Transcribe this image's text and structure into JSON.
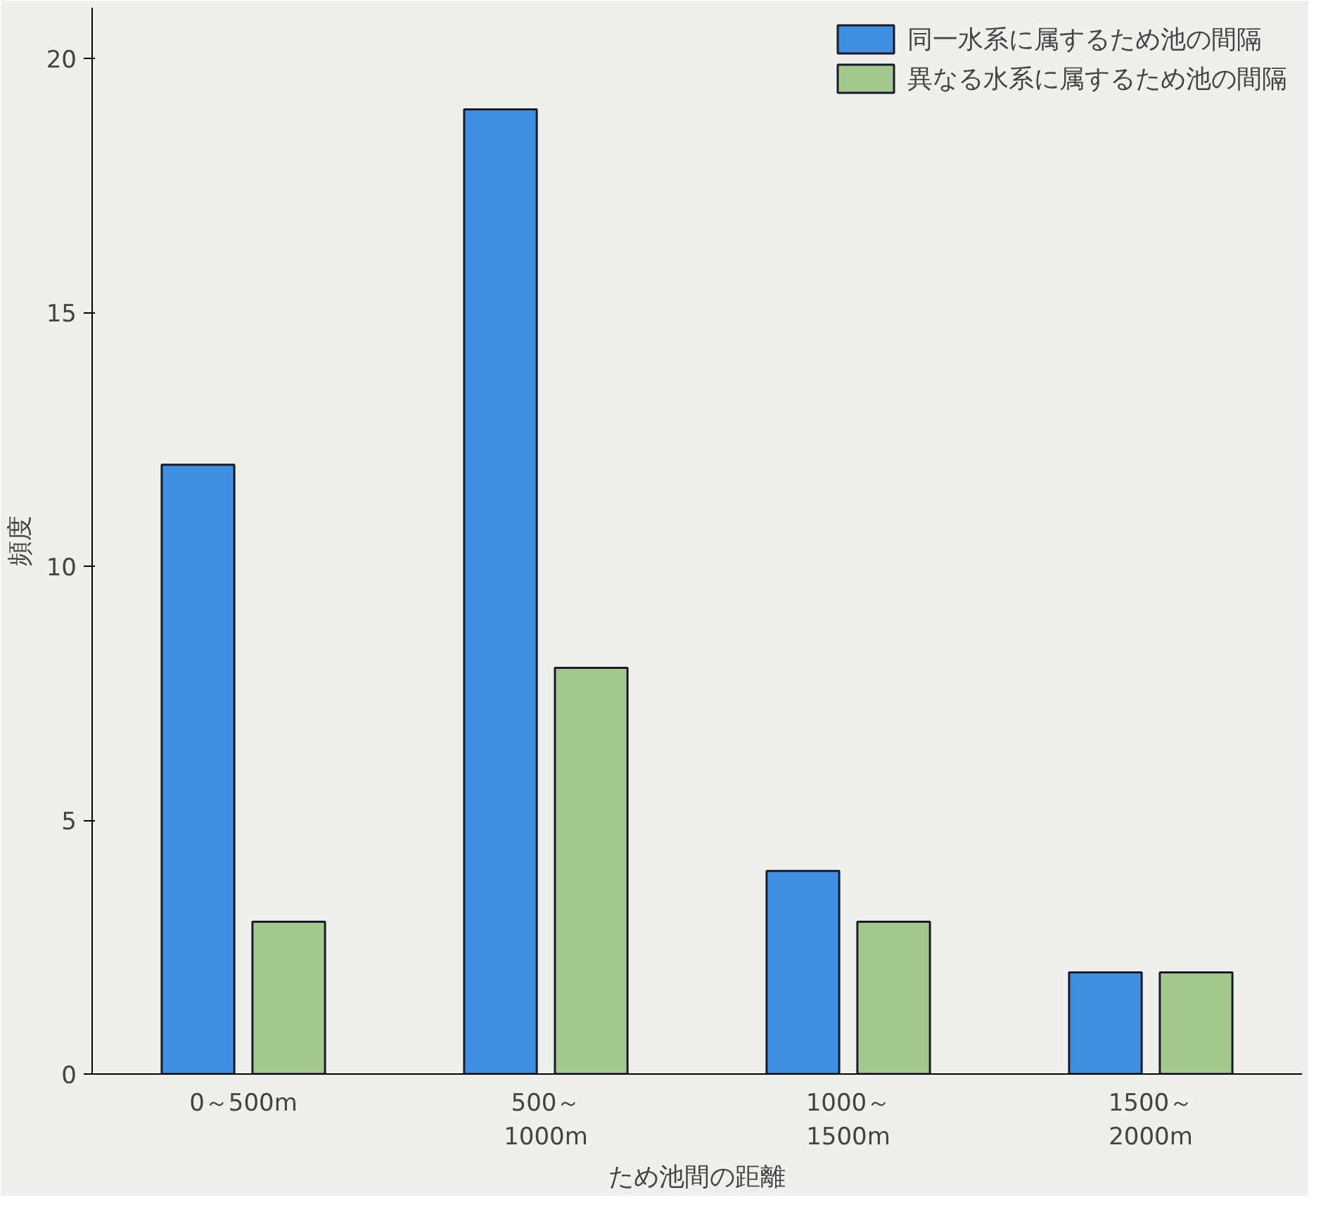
{
  "chart_data": {
    "type": "bar",
    "ylabel": "頻度",
    "xlabel": "ため池間の距離",
    "categories": [
      "0～500m",
      "500～\n1000m",
      "1000～\n1500m",
      "1500～\n2000m"
    ],
    "series": [
      {
        "name": "同一水系に属するため池の間隔",
        "color": "#3f8fe0",
        "values": [
          12,
          19,
          4,
          2
        ]
      },
      {
        "name": "異なる水系に属するため池の間隔",
        "color": "#a3c98f",
        "values": [
          3,
          8,
          3,
          2
        ]
      }
    ],
    "ylim": [
      0,
      21
    ],
    "yticks": [
      0,
      5,
      10,
      15,
      20
    ],
    "grid": false,
    "legend": "top right"
  }
}
